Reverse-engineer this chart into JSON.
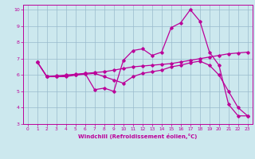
{
  "xlabel": "Windchill (Refroidissement éolien,°C)",
  "background_color": "#cce8ee",
  "line_color": "#bb0099",
  "grid_color": "#99bbcc",
  "xlim": [
    -0.5,
    23.5
  ],
  "ylim": [
    3,
    10.3
  ],
  "yticks": [
    3,
    4,
    5,
    6,
    7,
    8,
    9,
    10
  ],
  "xticks": [
    0,
    1,
    2,
    3,
    4,
    5,
    6,
    7,
    8,
    9,
    10,
    11,
    12,
    13,
    14,
    15,
    16,
    17,
    18,
    19,
    20,
    21,
    22,
    23
  ],
  "series": [
    {
      "x": [
        1,
        2,
        3,
        4,
        5,
        6,
        7,
        8,
        9,
        10,
        11,
        12,
        13,
        14,
        15,
        16,
        17,
        18,
        19,
        20,
        21,
        22,
        23
      ],
      "y": [
        6.8,
        5.9,
        5.9,
        5.9,
        6.0,
        6.1,
        5.1,
        5.2,
        5.0,
        6.9,
        7.5,
        7.6,
        7.2,
        7.4,
        8.9,
        9.2,
        10.0,
        9.3,
        7.4,
        6.6,
        4.2,
        3.5,
        3.5
      ]
    },
    {
      "x": [
        1,
        2,
        3,
        4,
        5,
        6,
        7,
        8,
        9,
        10,
        11,
        12,
        13,
        14,
        15,
        16,
        17,
        18,
        19,
        20,
        21,
        22,
        23
      ],
      "y": [
        6.8,
        5.9,
        5.95,
        6.0,
        6.05,
        6.1,
        6.15,
        6.2,
        6.3,
        6.4,
        6.5,
        6.55,
        6.6,
        6.65,
        6.7,
        6.8,
        6.9,
        7.0,
        7.1,
        7.2,
        7.3,
        7.35,
        7.4
      ]
    },
    {
      "x": [
        1,
        2,
        3,
        4,
        5,
        6,
        7,
        8,
        9,
        10,
        11,
        12,
        13,
        14,
        15,
        16,
        17,
        18,
        19,
        20,
        21,
        22,
        23
      ],
      "y": [
        6.8,
        5.9,
        5.9,
        5.95,
        6.0,
        6.05,
        6.1,
        5.9,
        5.7,
        5.5,
        5.9,
        6.1,
        6.2,
        6.3,
        6.5,
        6.6,
        6.75,
        6.85,
        6.6,
        6.0,
        5.0,
        4.0,
        3.5
      ]
    }
  ]
}
